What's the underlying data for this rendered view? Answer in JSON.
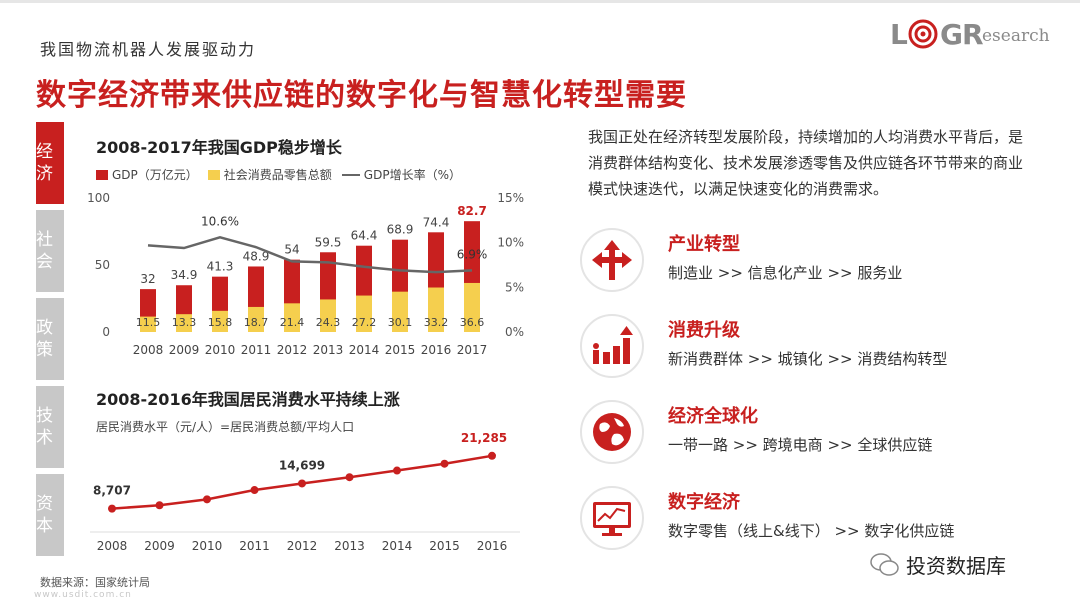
{
  "header": {
    "subtitle": "我国物流机器人发展驱动力",
    "title": "数字经济带来供应链的数字化与智慧化转型需要"
  },
  "logo": {
    "big": "L  G R",
    "small": "esearch"
  },
  "sidebar": [
    {
      "label": "经济",
      "active": true
    },
    {
      "label": "社会",
      "active": false
    },
    {
      "label": "政策",
      "active": false
    },
    {
      "label": "技术",
      "active": false
    },
    {
      "label": "资本",
      "active": false
    }
  ],
  "chart1": {
    "title": "2008-2017年我国GDP稳步增长",
    "legend": {
      "gdp": "GDP（万亿元）",
      "retail": "社会消费品零售总额",
      "rate": "GDP增长率（%）"
    }
  },
  "chart2": {
    "title": "2008-2016年我国居民消费水平持续上涨",
    "legend": "居民消费水平（元/人）=居民消费总额/平均人口"
  },
  "chart_data": [
    {
      "type": "bar",
      "title": "2008-2017年我国GDP稳步增长",
      "categories": [
        "2008",
        "2009",
        "2010",
        "2011",
        "2012",
        "2013",
        "2014",
        "2015",
        "2016",
        "2017"
      ],
      "series": [
        {
          "name": "GDP（万亿元）",
          "values": [
            32,
            34.9,
            41.3,
            48.9,
            54,
            59.5,
            64.4,
            68.9,
            74.4,
            82.7
          ],
          "color": "#c8201f"
        },
        {
          "name": "社会消费品零售总额",
          "values": [
            11.5,
            13.3,
            15.8,
            18.7,
            21.4,
            24.3,
            27.2,
            30.1,
            33.2,
            36.6
          ],
          "color": "#f5cf4e"
        },
        {
          "name": "GDP增长率（%）",
          "type": "line",
          "values": [
            9.7,
            9.4,
            10.6,
            9.5,
            7.9,
            7.8,
            7.3,
            6.9,
            6.7,
            6.9
          ],
          "color": "#666666"
        }
      ],
      "labeled_rates": {
        "2010": "10.6%",
        "2017": "6.9%"
      },
      "ylim": [
        0,
        100
      ],
      "yticks": [
        "0",
        "50",
        "100"
      ],
      "y2lim": [
        0,
        15
      ],
      "y2ticks": [
        "0%",
        "5%",
        "10%",
        "15%"
      ],
      "highlight_color": "#c8201f"
    },
    {
      "type": "line",
      "title": "2008-2016年我国居民消费水平持续上涨",
      "categories": [
        "2008",
        "2009",
        "2010",
        "2011",
        "2012",
        "2013",
        "2014",
        "2015",
        "2016"
      ],
      "values": [
        8707,
        9514,
        10919,
        13134,
        14699,
        16190,
        17778,
        19397,
        21285
      ],
      "labels": {
        "0": "8,707",
        "4": "14,699",
        "8": "21,285"
      },
      "ylim": [
        0,
        26000
      ],
      "color": "#c8201f"
    }
  ],
  "intro": "我国正处在经济转型发展阶段，持续增加的人均消费水平背后，是消费群体结构变化、技术发展渗透零售及供应链各环节带来的商业模式快速迭代，以满足快速变化的消费需求。",
  "drivers": [
    {
      "name": "产业转型",
      "desc": "制造业 >> 信息化产业 >> 服务业",
      "icon": "split-arrows-icon"
    },
    {
      "name": "消费升级",
      "desc": "新消费群体 >> 城镇化 >> 消费结构转型",
      "icon": "growth-bars-icon"
    },
    {
      "name": "经济全球化",
      "desc": "一带一路 >> 跨境电商 >> 全球供应链",
      "icon": "globe-icon"
    },
    {
      "name": "数字经济",
      "desc": "数字零售（线上&线下） >> 数字化供应链",
      "icon": "monitor-chart-icon"
    }
  ],
  "footer": {
    "source": "数据来源：国家统计局",
    "website": "www.usdit.com.cn",
    "wechat": "投资数据库"
  },
  "colors": {
    "accent": "#c8201f",
    "yellow": "#f5cf4e",
    "gray": "#c8c8c8"
  }
}
